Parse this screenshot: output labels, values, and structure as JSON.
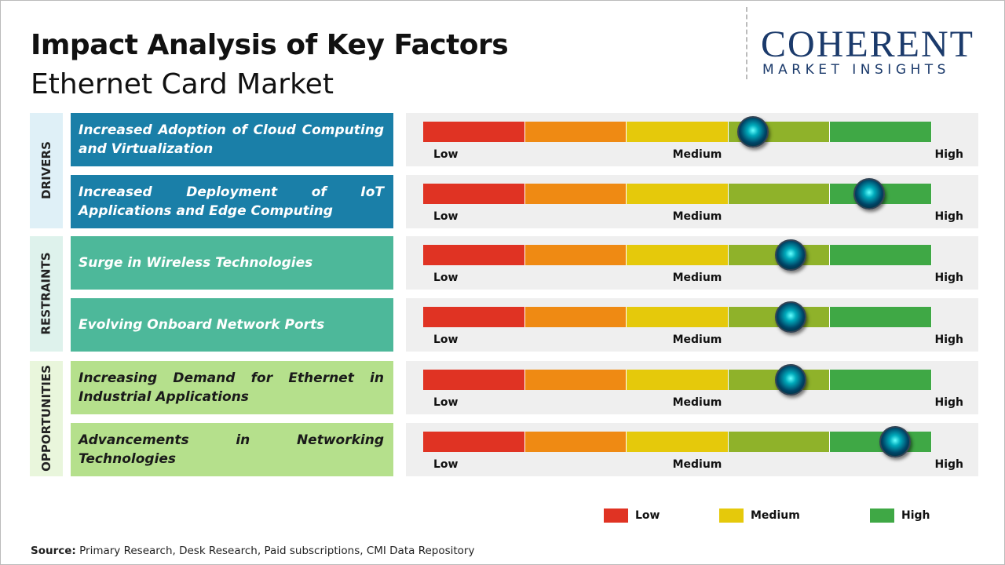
{
  "header": {
    "title": "Impact Analysis of Key Factors",
    "subtitle": "Ethernet Card Market"
  },
  "logo": {
    "name": "COHERENT",
    "tagline": "MARKET INSIGHTS"
  },
  "scale": {
    "low": "Low",
    "medium": "Medium",
    "high": "High",
    "segment_colors": [
      "#e03323",
      "#ef8a13",
      "#e5c90b",
      "#8fb22a",
      "#3fa845"
    ]
  },
  "groups": [
    {
      "label": "DRIVERS",
      "color": "#1a7fa8",
      "bg": "#dff0f7",
      "text_color": "#ffffff",
      "factors": [
        {
          "text": "Increased Adoption of Cloud Computing and Virtualization",
          "impact": 3.24
        },
        {
          "text": "Increased Deployment of IoT Applications and Edge Computing",
          "impact": 4.38
        }
      ]
    },
    {
      "label": "RESTRAINTS",
      "color": "#4db89a",
      "bg": "#def2ec",
      "text_color": "#ffffff",
      "factors": [
        {
          "text": "Surge in Wireless Technologies",
          "impact": 3.61
        },
        {
          "text": "Evolving Onboard Network Ports",
          "impact": 3.61
        }
      ]
    },
    {
      "label": "OPPORTUNITIES",
      "color": "#b5e08c",
      "bg": "#e9f6dc",
      "text_color": "#1a1a1a",
      "factors": [
        {
          "text": "Increasing Demand for Ethernet in Industrial Applications",
          "impact": 3.61
        },
        {
          "text": "Advancements in Networking Technologies",
          "impact": 4.64
        }
      ]
    }
  ],
  "legend": [
    {
      "label": "Low",
      "color": "#e03323"
    },
    {
      "label": "Medium",
      "color": "#e5c90b"
    },
    {
      "label": "High",
      "color": "#3fa845"
    }
  ],
  "source": {
    "label": "Source:",
    "text": "Primary Research, Desk Research, Paid subscriptions, CMI Data Repository"
  }
}
